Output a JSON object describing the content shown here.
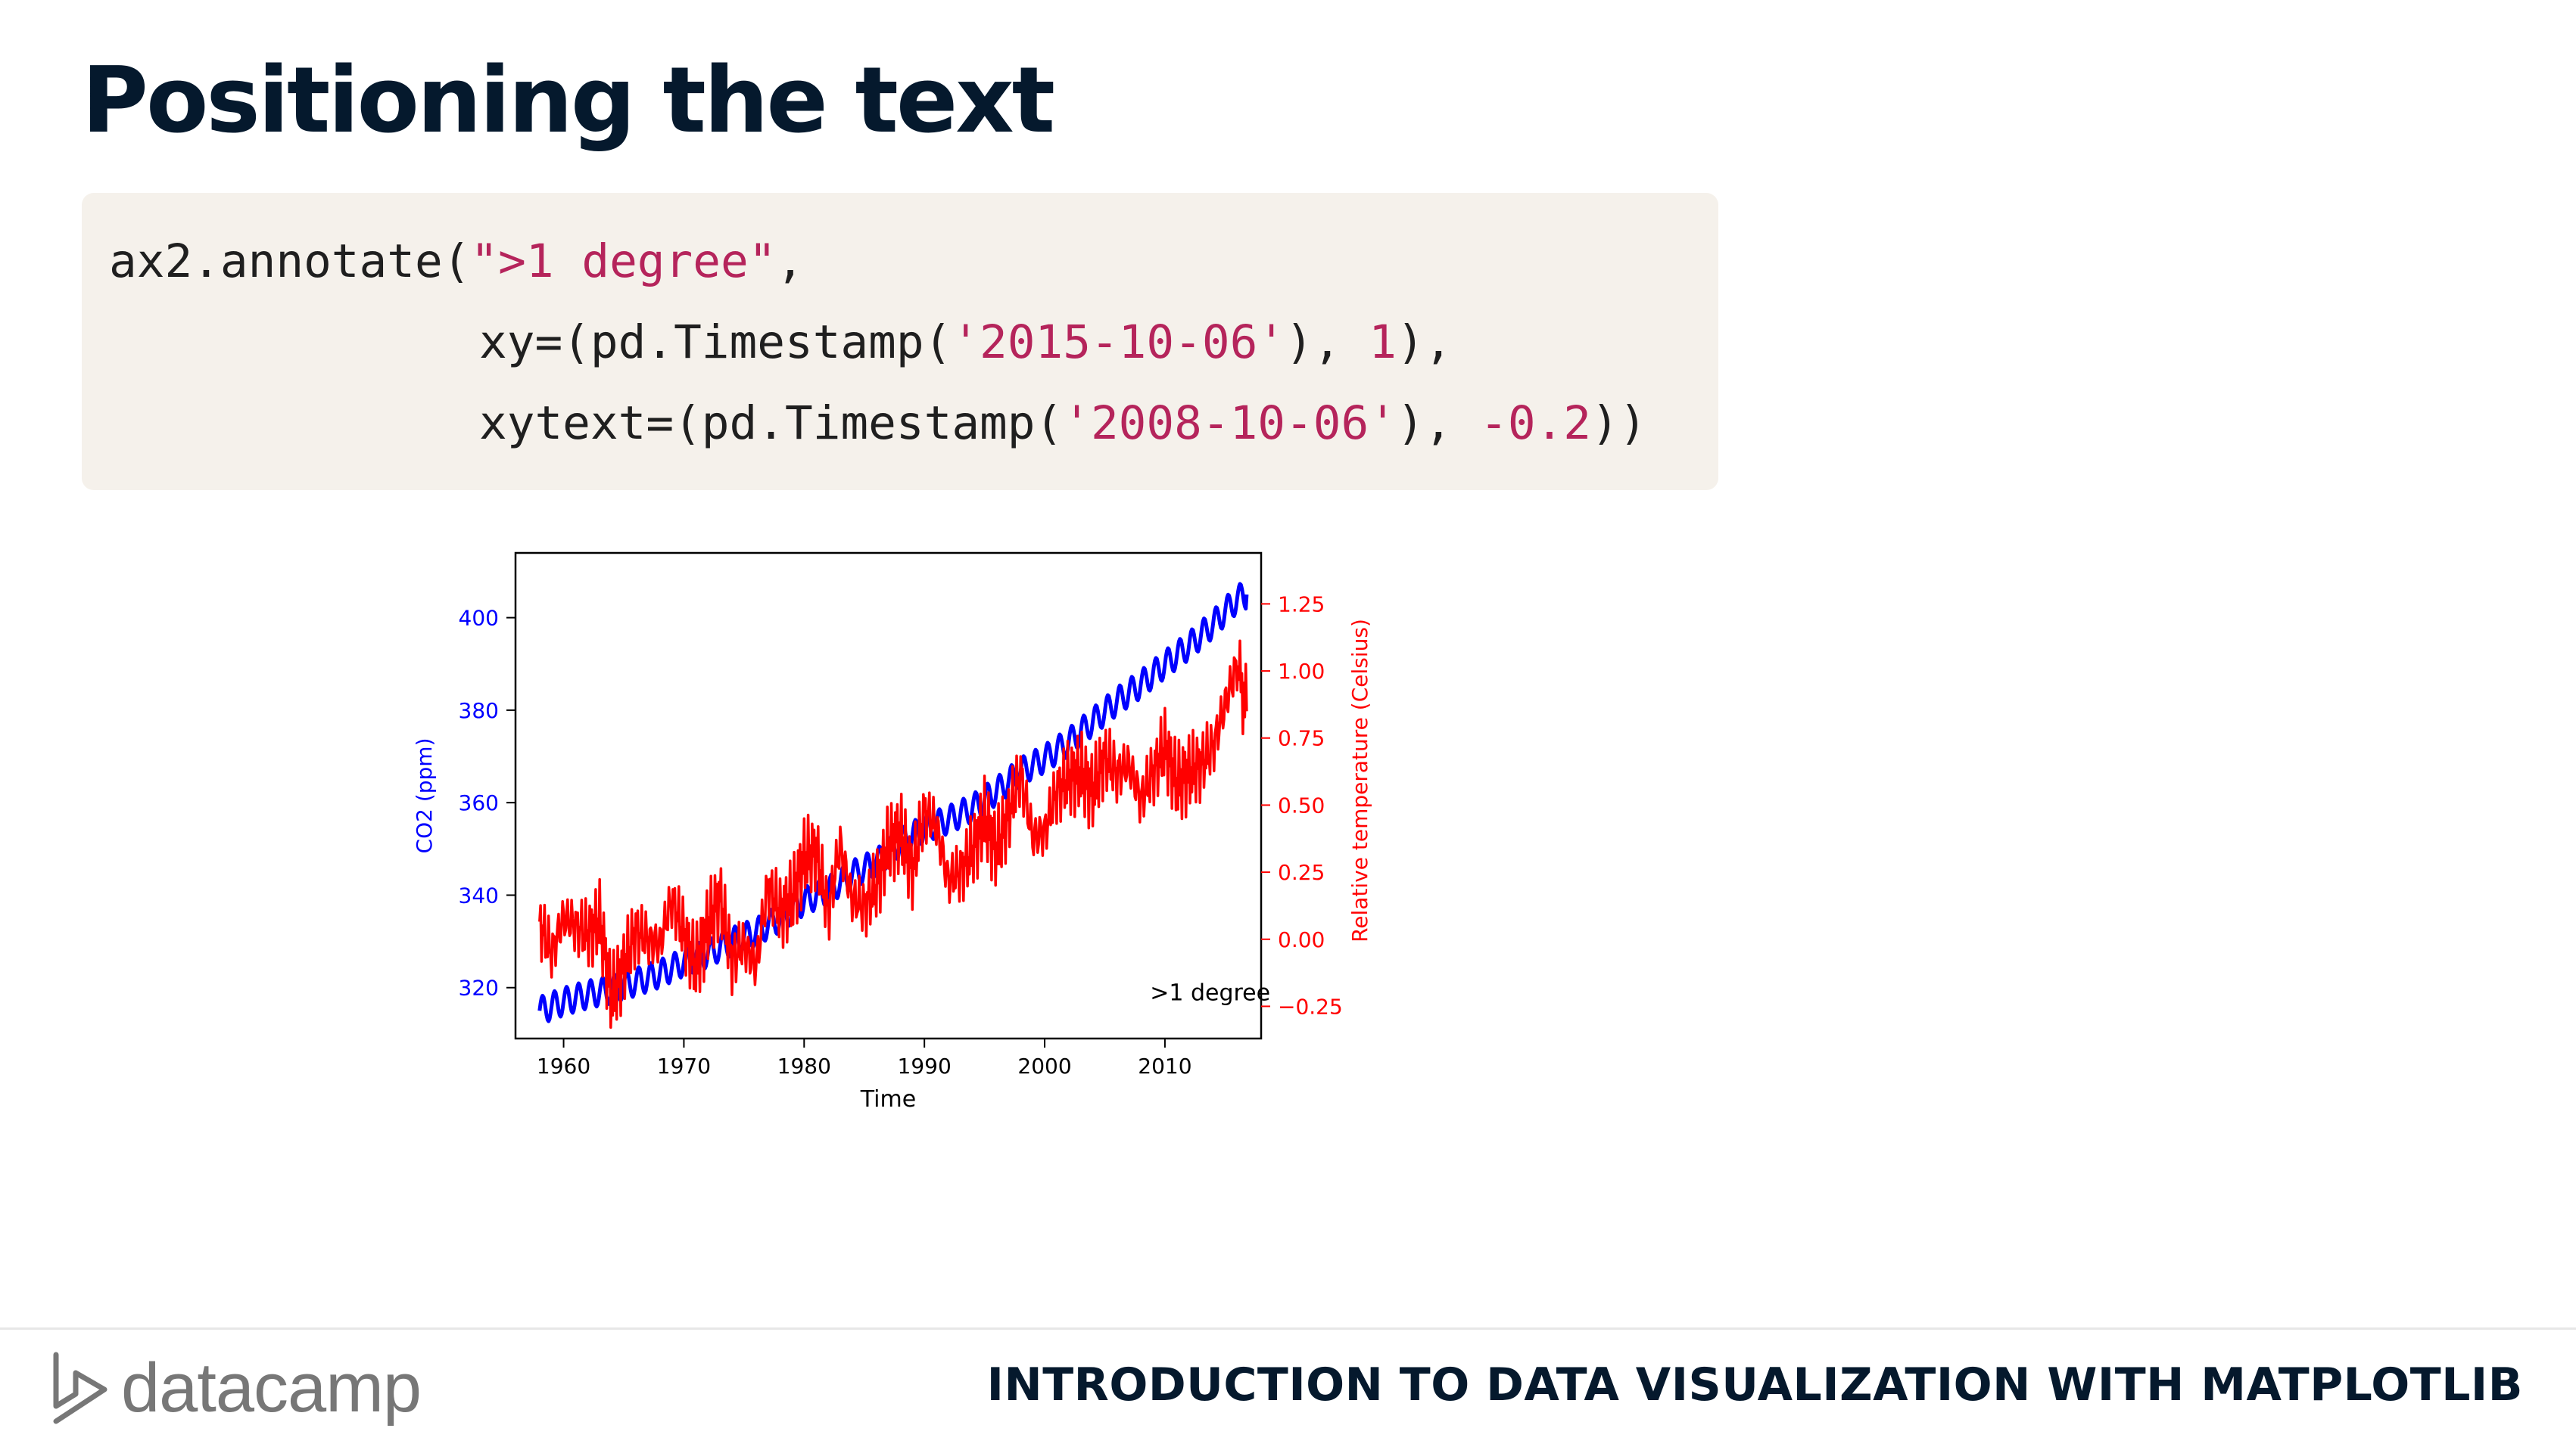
{
  "slide": {
    "title": "Positioning the text",
    "code": {
      "line1": {
        "plain1": "ax2.annotate(",
        "str1": "\">1 degree\"",
        "plain2": ","
      },
      "line2": {
        "plain1": "xy=(pd.Timestamp(",
        "str1": "'2015-10-06'",
        "plain2": "), ",
        "num1": "1",
        "plain3": "),"
      },
      "line3": {
        "plain1": "xytext=(pd.Timestamp(",
        "str1": "'2008-10-06'",
        "plain2": "), ",
        "num1": "-0.2",
        "plain3": "))"
      }
    }
  },
  "footer": {
    "brand": "datacamp",
    "course": "INTRODUCTION TO DATA VISUALIZATION WITH MATPLOTLIB"
  },
  "colors": {
    "title": "#05192d",
    "code_bg": "#f5f1eb",
    "string": "#b5245b",
    "co2_series": "#0000ff",
    "temp_series": "#ff0000"
  },
  "chart_data": {
    "type": "line",
    "xlabel": "Time",
    "ylabel_left": "CO2 (ppm)",
    "ylabel_right": "Relative temperature (Celsius)",
    "xlim": [
      1956,
      2018
    ],
    "ylim_left": [
      309,
      414
    ],
    "ylim_right": [
      -0.37,
      1.44
    ],
    "x_ticks": [
      1960,
      1970,
      1980,
      1990,
      2000,
      2010
    ],
    "y_left_ticks": [
      320,
      340,
      360,
      380,
      400
    ],
    "y_right_ticks": [
      "−0.25",
      "0.00",
      "0.25",
      "0.50",
      "0.75",
      "1.00",
      "1.25"
    ],
    "y_right_tick_values": [
      -0.25,
      0.0,
      0.25,
      0.5,
      0.75,
      1.0,
      1.25
    ],
    "annotation": {
      "text": ">1 degree",
      "xytext": [
        2008.76,
        -0.2
      ],
      "xy": [
        2015.76,
        1
      ]
    },
    "series": [
      {
        "axis": "left",
        "color": "#0000ff",
        "x": [
          1958,
          1960,
          1962,
          1964,
          1966,
          1968,
          1970,
          1972,
          1974,
          1976,
          1978,
          1980,
          1982,
          1984,
          1986,
          1988,
          1990,
          1992,
          1994,
          1996,
          1998,
          2000,
          2002,
          2004,
          2006,
          2008,
          2010,
          2012,
          2014,
          2016,
          2016.8
        ],
        "y": [
          315,
          317,
          318.5,
          319.6,
          321.2,
          323,
          325.5,
          327.4,
          330,
          332,
          335,
          338.7,
          341,
          344.5,
          347,
          351.4,
          354.4,
          356.3,
          358.8,
          362.5,
          366.7,
          369.5,
          373.1,
          377.5,
          381.9,
          385.6,
          389.9,
          393.9,
          398.6,
          404,
          405
        ]
      },
      {
        "axis": "right",
        "color": "#ff0000",
        "x": [
          1958,
          1959,
          1960,
          1961,
          1962,
          1963,
          1964,
          1965,
          1966,
          1967,
          1968,
          1969,
          1970,
          1971,
          1972,
          1973,
          1974,
          1975,
          1976,
          1977,
          1978,
          1979,
          1980,
          1981,
          1982,
          1983,
          1984,
          1985,
          1986,
          1987,
          1988,
          1989,
          1990,
          1991,
          1992,
          1993,
          1994,
          1995,
          1996,
          1997,
          1998,
          1999,
          2000,
          2001,
          2002,
          2003,
          2004,
          2005,
          2006,
          2007,
          2008,
          2009,
          2010,
          2011,
          2012,
          2013,
          2014,
          2015,
          2016,
          2016.8
        ],
        "y": [
          0.06,
          -0.05,
          0.08,
          0.05,
          0.02,
          0.07,
          -0.22,
          -0.1,
          0.03,
          0.0,
          -0.02,
          0.15,
          0.02,
          -0.1,
          0.05,
          0.16,
          -0.08,
          -0.02,
          -0.1,
          0.2,
          0.1,
          0.15,
          0.3,
          0.33,
          0.1,
          0.35,
          0.15,
          0.12,
          0.2,
          0.35,
          0.4,
          0.25,
          0.48,
          0.42,
          0.22,
          0.25,
          0.33,
          0.45,
          0.33,
          0.46,
          0.62,
          0.38,
          0.4,
          0.55,
          0.6,
          0.62,
          0.55,
          0.68,
          0.62,
          0.65,
          0.52,
          0.62,
          0.72,
          0.58,
          0.62,
          0.65,
          0.72,
          0.87,
          1.03,
          0.85
        ]
      }
    ]
  }
}
